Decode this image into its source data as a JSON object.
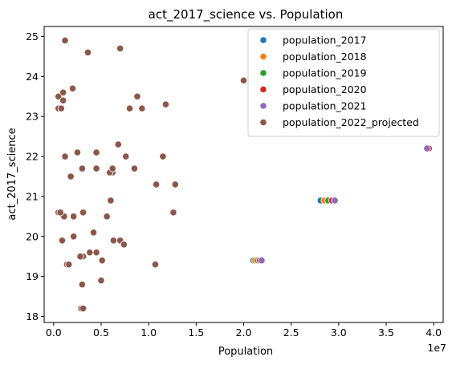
{
  "chart_data": {
    "type": "scatter",
    "title": "act_2017_science vs. Population",
    "xlabel": "Population",
    "ylabel": "act_2017_science",
    "x_offset_label": "1e7",
    "xlim": [
      -0.1,
      4.1
    ],
    "ylim": [
      17.85,
      25.25
    ],
    "x_ticks": [
      0.0,
      0.5,
      1.0,
      1.5,
      2.0,
      2.5,
      3.0,
      3.5,
      4.0
    ],
    "x_tick_labels": [
      "0.0",
      "0.5",
      "1.0",
      "1.5",
      "2.0",
      "2.5",
      "3.0",
      "3.5",
      "4.0"
    ],
    "y_ticks": [
      18,
      19,
      20,
      21,
      22,
      23,
      24,
      25
    ],
    "y_tick_labels": [
      "18",
      "19",
      "20",
      "21",
      "22",
      "23",
      "24",
      "25"
    ],
    "grid": false,
    "legend_position": "top-right",
    "series": [
      {
        "name": "population_2017",
        "color": "#1f77b4",
        "x": [
          2.81,
          2.1,
          3.93
        ],
        "y": [
          20.9,
          19.4,
          22.2
        ]
      },
      {
        "name": "population_2018",
        "color": "#ff7f0e",
        "x": [
          2.85,
          2.12,
          3.94
        ],
        "y": [
          20.9,
          19.4,
          22.2
        ]
      },
      {
        "name": "population_2019",
        "color": "#2ca02c",
        "x": [
          2.89,
          2.15,
          3.95
        ],
        "y": [
          20.9,
          19.4,
          22.2
        ]
      },
      {
        "name": "population_2020",
        "color": "#d62728",
        "x": [
          2.93,
          2.17,
          3.95
        ],
        "y": [
          20.9,
          19.4,
          22.2
        ]
      },
      {
        "name": "population_2021",
        "color": "#9467bd",
        "x": [
          2.96,
          2.19,
          3.93
        ],
        "y": [
          20.9,
          19.4,
          22.2
        ]
      },
      {
        "name": "population_2022_projected",
        "color": "#8c564b",
        "x": [
          0.12,
          0.36,
          0.7,
          0.05,
          0.1,
          0.2,
          0.25,
          0.45,
          0.62,
          0.76,
          0.88,
          0.93,
          1.15,
          1.28,
          0.05,
          0.08,
          0.1,
          0.12,
          0.6,
          0.68,
          0.8,
          0.85,
          0.07,
          0.11,
          0.21,
          0.3,
          0.45,
          0.59,
          1.08,
          1.18,
          0.18,
          0.31,
          0.56,
          0.62,
          1.26,
          2.0,
          0.05,
          0.09,
          0.14,
          0.31,
          0.63,
          0.07,
          0.21,
          0.42,
          0.7,
          0.16,
          0.28,
          0.38,
          0.45,
          0.51,
          0.74,
          0.3,
          1.07,
          0.5,
          0.29,
          0.31
        ],
        "y": [
          24.9,
          24.6,
          24.7,
          23.5,
          23.6,
          23.7,
          22.1,
          22.1,
          21.6,
          22.0,
          23.5,
          23.2,
          22.0,
          21.3,
          23.2,
          23.2,
          23.4,
          22.0,
          20.9,
          22.3,
          23.2,
          21.7,
          20.6,
          20.5,
          20.5,
          21.7,
          21.7,
          21.6,
          21.3,
          23.3,
          21.5,
          20.6,
          20.5,
          21.7,
          20.6,
          23.9,
          20.6,
          19.9,
          19.3,
          19.5,
          19.9,
          20.6,
          20.0,
          20.1,
          19.9,
          19.3,
          19.5,
          19.6,
          19.6,
          19.4,
          19.8,
          18.8,
          19.3,
          18.9,
          18.2,
          18.2
        ]
      }
    ]
  }
}
